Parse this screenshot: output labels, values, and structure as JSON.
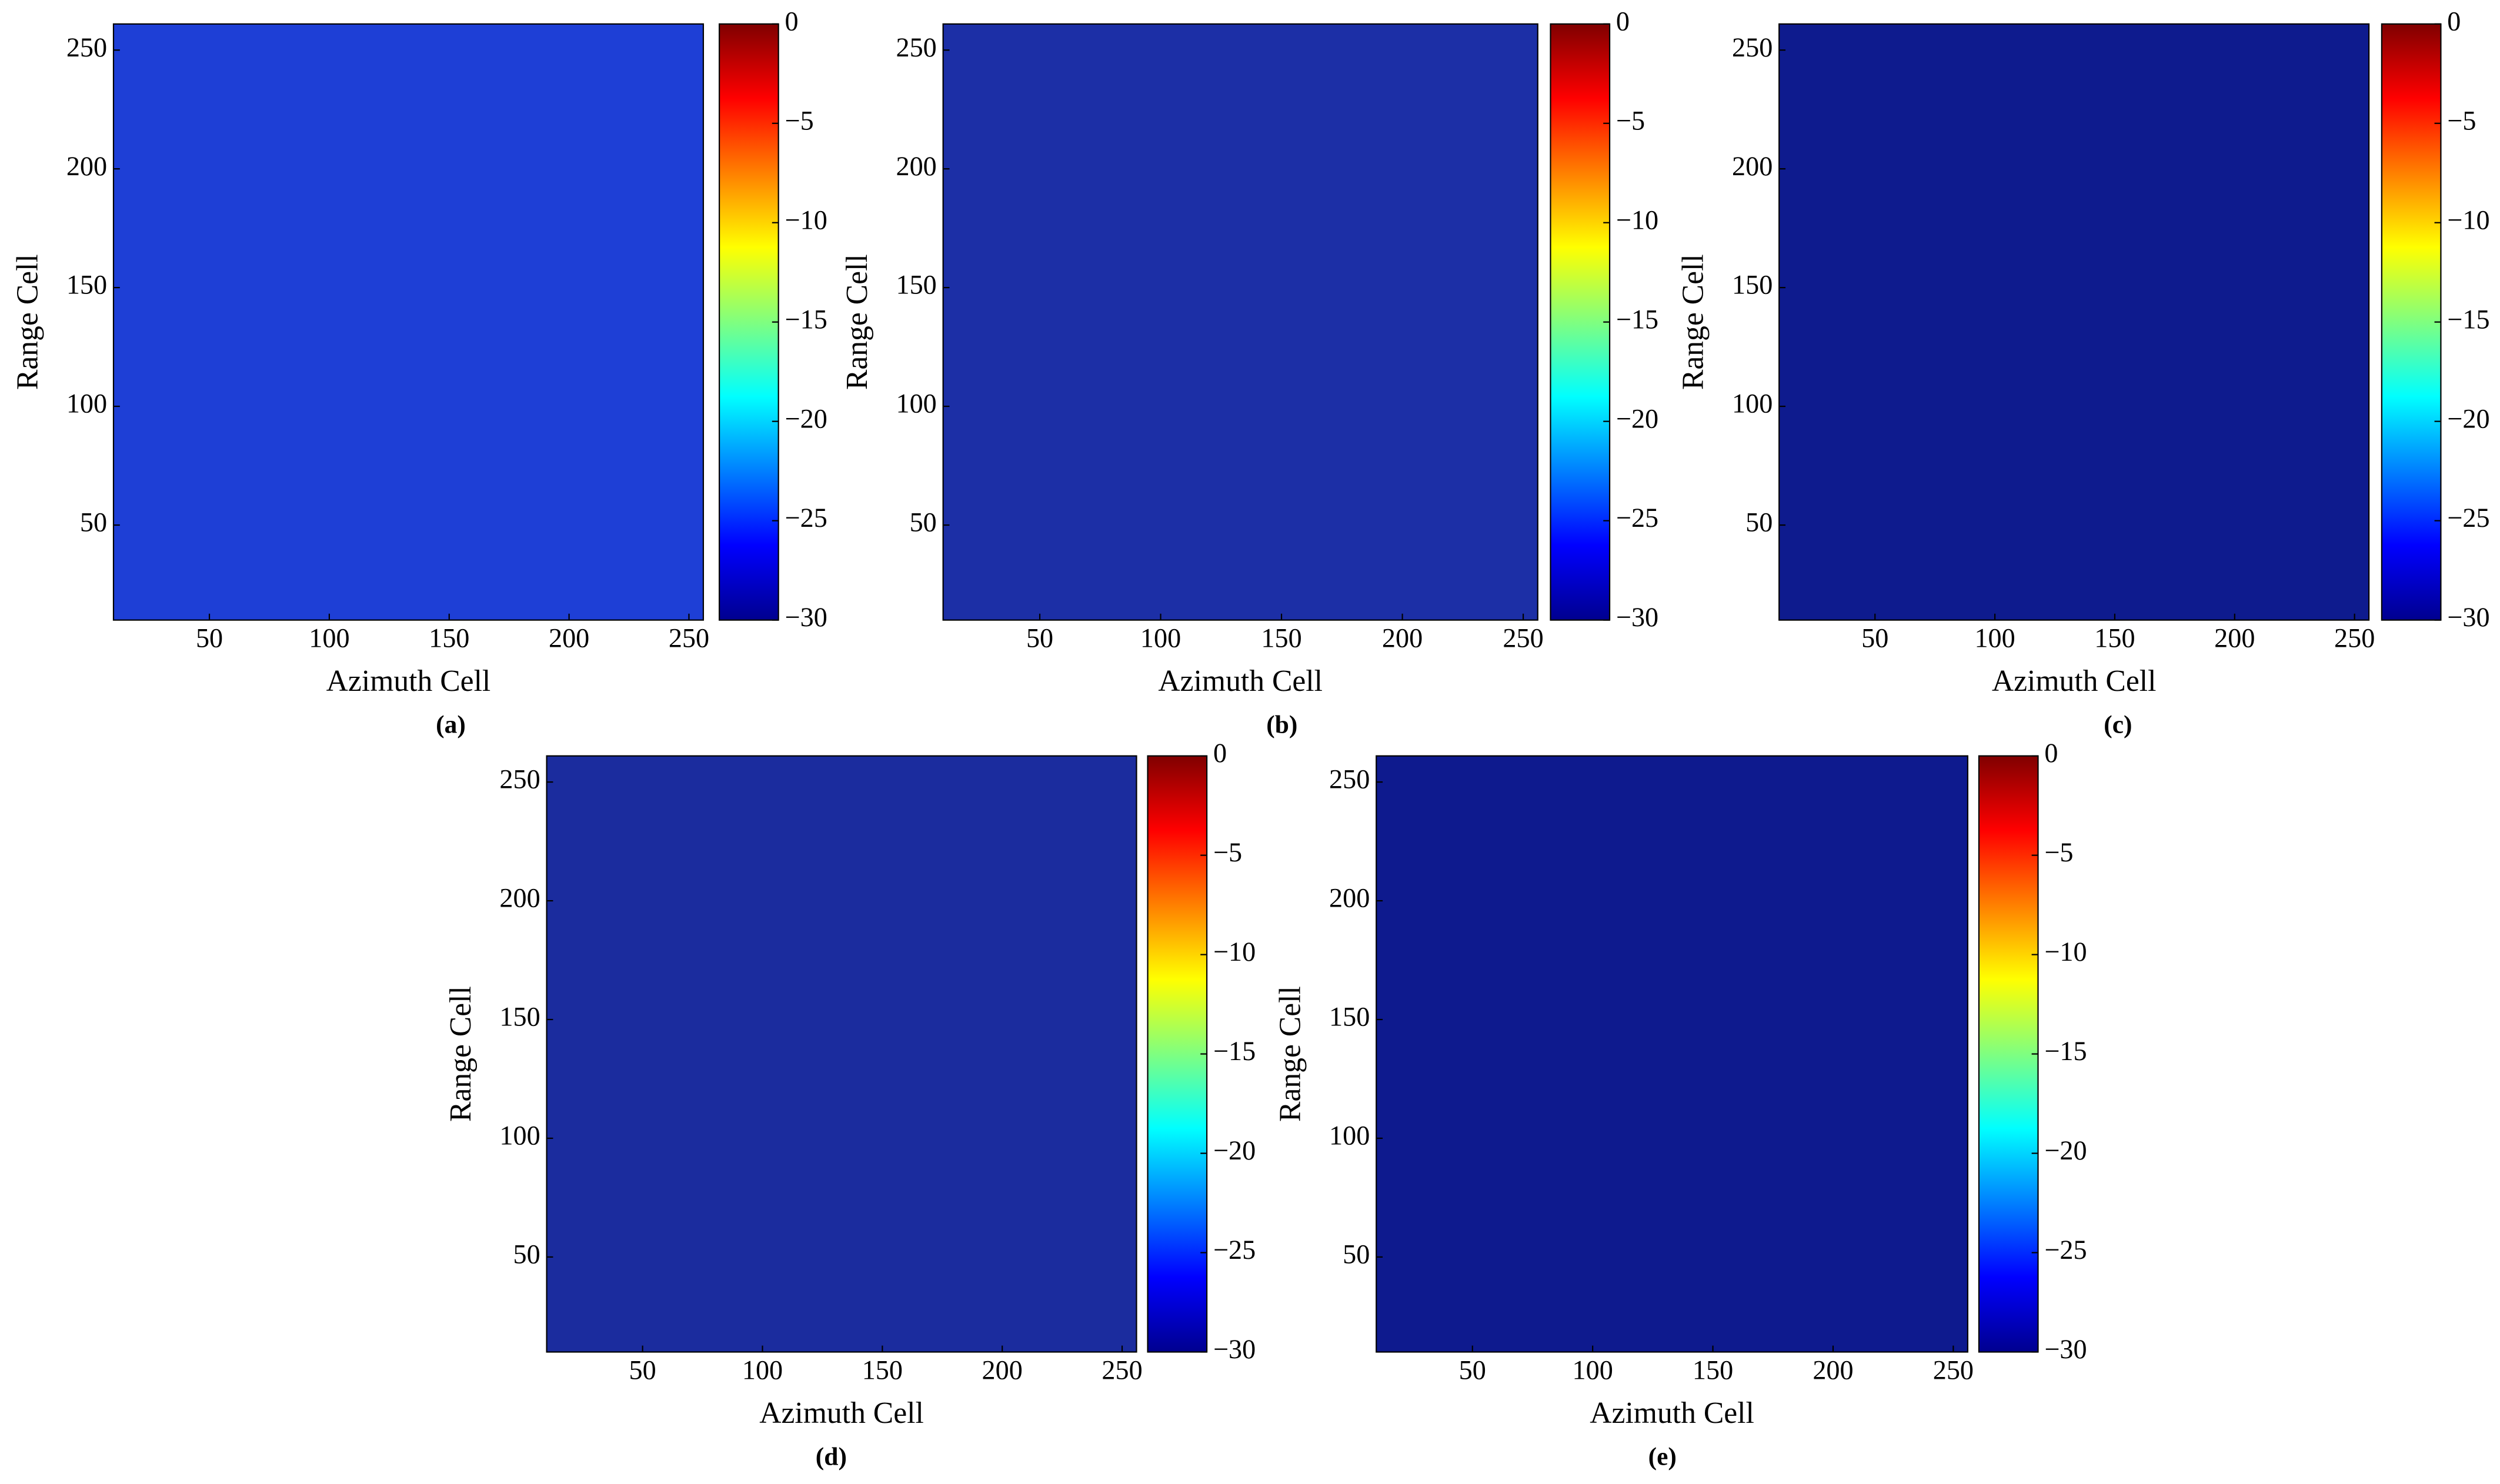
{
  "chart_data": [
    {
      "type": "heatmap",
      "caption": "(a)",
      "xlabel": "Azimuth Cell",
      "ylabel": "Range Cell",
      "xlim": [
        10,
        256
      ],
      "ylim": [
        10,
        261
      ],
      "xticks": [
        50,
        100,
        150,
        200,
        250
      ],
      "yticks": [
        50,
        100,
        150,
        200,
        250
      ],
      "clim": [
        -30,
        0
      ],
      "colormap": "jet",
      "image_color": "#1e3fd6",
      "cticks": [
        0,
        {
          "value": -5,
          "label": "−5"
        },
        {
          "value": -10,
          "label": "−10"
        },
        {
          "value": -15,
          "label": "−15"
        },
        {
          "value": -20,
          "label": "−20"
        },
        {
          "value": -25,
          "label": "−25"
        },
        {
          "value": -30,
          "label": "−30"
        }
      ]
    },
    {
      "type": "heatmap",
      "caption": "(b)",
      "xlabel": "Azimuth Cell",
      "ylabel": "Range Cell",
      "xlim": [
        10,
        256
      ],
      "ylim": [
        10,
        261
      ],
      "xticks": [
        50,
        100,
        150,
        200,
        250
      ],
      "yticks": [
        50,
        100,
        150,
        200,
        250
      ],
      "clim": [
        -30,
        0
      ],
      "colormap": "jet",
      "image_color": "#1c2fa6",
      "cticks": [
        0,
        {
          "value": -5,
          "label": "−5"
        },
        {
          "value": -10,
          "label": "−10"
        },
        {
          "value": -15,
          "label": "−15"
        },
        {
          "value": -20,
          "label": "−20"
        },
        {
          "value": -25,
          "label": "−25"
        },
        {
          "value": -30,
          "label": "−30"
        }
      ]
    },
    {
      "type": "heatmap",
      "caption": "(c)",
      "xlabel": "Azimuth Cell",
      "ylabel": "Range Cell",
      "xlim": [
        10,
        256
      ],
      "ylim": [
        10,
        261
      ],
      "xticks": [
        50,
        100,
        150,
        200,
        250
      ],
      "yticks": [
        50,
        100,
        150,
        200,
        250
      ],
      "clim": [
        -30,
        0
      ],
      "colormap": "jet",
      "image_color": "#0e1b8e",
      "cticks": [
        0,
        {
          "value": -5,
          "label": "−5"
        },
        {
          "value": -10,
          "label": "−10"
        },
        {
          "value": -15,
          "label": "−15"
        },
        {
          "value": -20,
          "label": "−20"
        },
        {
          "value": -25,
          "label": "−25"
        },
        {
          "value": -30,
          "label": "−30"
        }
      ]
    },
    {
      "type": "heatmap",
      "caption": "(d)",
      "xlabel": "Azimuth Cell",
      "ylabel": "Range Cell",
      "xlim": [
        10,
        256
      ],
      "ylim": [
        10,
        261
      ],
      "xticks": [
        50,
        100,
        150,
        200,
        250
      ],
      "yticks": [
        50,
        100,
        150,
        200,
        250
      ],
      "clim": [
        -30,
        0
      ],
      "colormap": "jet",
      "image_color": "#1b2c9e",
      "cticks": [
        0,
        {
          "value": -5,
          "label": "−5"
        },
        {
          "value": -10,
          "label": "−10"
        },
        {
          "value": -15,
          "label": "−15"
        },
        {
          "value": -20,
          "label": "−20"
        },
        {
          "value": -25,
          "label": "−25"
        },
        {
          "value": -30,
          "label": "−30"
        }
      ]
    },
    {
      "type": "heatmap",
      "caption": "(e)",
      "xlabel": "Azimuth Cell",
      "ylabel": "Range Cell",
      "xlim": [
        10,
        256
      ],
      "ylim": [
        10,
        261
      ],
      "xticks": [
        50,
        100,
        150,
        200,
        250
      ],
      "yticks": [
        50,
        100,
        150,
        200,
        250
      ],
      "clim": [
        -30,
        0
      ],
      "colormap": "jet",
      "image_color": "#0e1a8e",
      "cticks": [
        0,
        {
          "value": -5,
          "label": "−5"
        },
        {
          "value": -10,
          "label": "−10"
        },
        {
          "value": -15,
          "label": "−15"
        },
        {
          "value": -20,
          "label": "−20"
        },
        {
          "value": -25,
          "label": "−25"
        },
        {
          "value": -30,
          "label": "−30"
        }
      ]
    }
  ]
}
